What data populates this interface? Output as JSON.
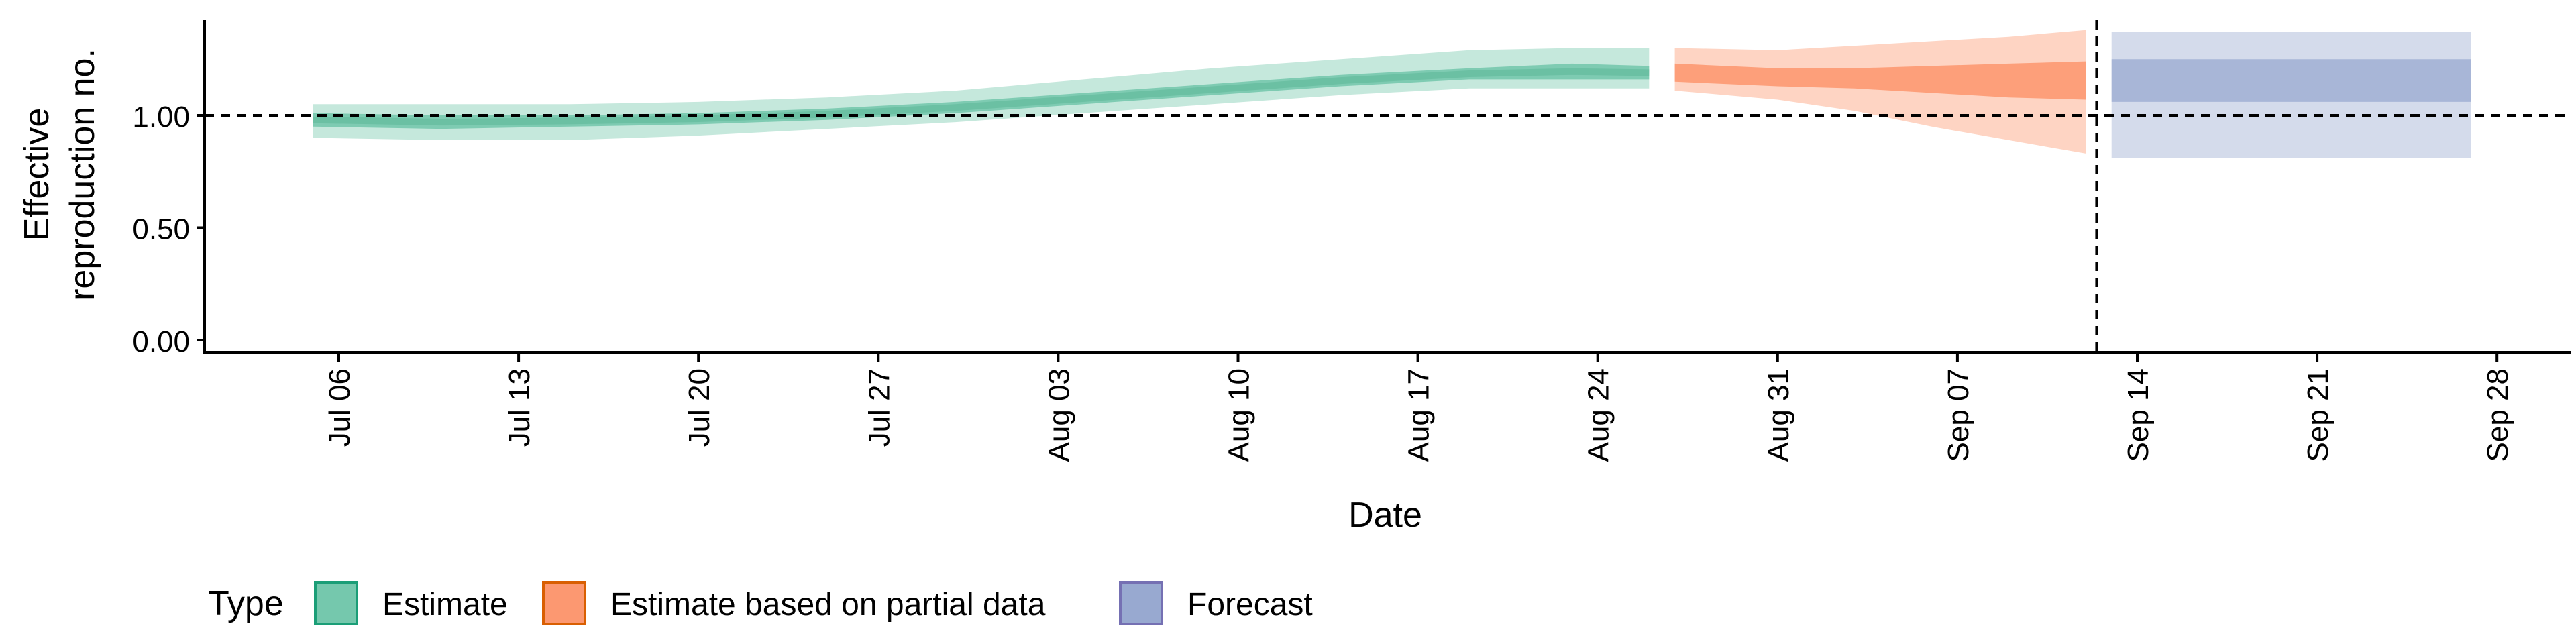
{
  "chart_data": {
    "type": "area",
    "title": "",
    "xlabel": "Date",
    "ylabel_lines": [
      "Effective",
      "reproduction no."
    ],
    "ylim": [
      0,
      1.45
    ],
    "xlim": [
      "2020-07-03",
      "2020-09-30"
    ],
    "reference_line_y": 1.0,
    "vline_date": "2020-09-12",
    "grid": false,
    "legend_position": "bottom-left",
    "legend_title": "Type",
    "x_ticks": [
      {
        "date": "2020-07-06",
        "label": "Jul 06"
      },
      {
        "date": "2020-07-13",
        "label": "Jul 13"
      },
      {
        "date": "2020-07-20",
        "label": "Jul 20"
      },
      {
        "date": "2020-07-27",
        "label": "Jul 27"
      },
      {
        "date": "2020-08-03",
        "label": "Aug 03"
      },
      {
        "date": "2020-08-10",
        "label": "Aug 10"
      },
      {
        "date": "2020-08-17",
        "label": "Aug 17"
      },
      {
        "date": "2020-08-24",
        "label": "Aug 24"
      },
      {
        "date": "2020-08-31",
        "label": "Aug 31"
      },
      {
        "date": "2020-09-07",
        "label": "Sep 07"
      },
      {
        "date": "2020-09-14",
        "label": "Sep 14"
      },
      {
        "date": "2020-09-21",
        "label": "Sep 21"
      },
      {
        "date": "2020-09-28",
        "label": "Sep 28"
      }
    ],
    "y_ticks": [
      {
        "value": 0.0,
        "label": "0.00"
      },
      {
        "value": 0.5,
        "label": "0.50"
      },
      {
        "value": 1.0,
        "label": "1.00"
      }
    ],
    "series": [
      {
        "name": "Estimate",
        "color": "#1b9e77",
        "fill": "#66c2a4",
        "points": [
          {
            "date": "2020-07-05",
            "lo90": 0.9,
            "lo50": 0.95,
            "hi50": 1.01,
            "hi90": 1.05
          },
          {
            "date": "2020-07-10",
            "lo90": 0.89,
            "lo50": 0.94,
            "hi50": 1.0,
            "hi90": 1.05
          },
          {
            "date": "2020-07-15",
            "lo90": 0.89,
            "lo50": 0.95,
            "hi50": 1.0,
            "hi90": 1.05
          },
          {
            "date": "2020-07-20",
            "lo90": 0.91,
            "lo50": 0.96,
            "hi50": 1.01,
            "hi90": 1.06
          },
          {
            "date": "2020-07-25",
            "lo90": 0.94,
            "lo50": 0.98,
            "hi50": 1.03,
            "hi90": 1.08
          },
          {
            "date": "2020-07-30",
            "lo90": 0.97,
            "lo50": 1.01,
            "hi50": 1.06,
            "hi90": 1.11
          },
          {
            "date": "2020-08-04",
            "lo90": 1.01,
            "lo50": 1.05,
            "hi50": 1.1,
            "hi90": 1.16
          },
          {
            "date": "2020-08-09",
            "lo90": 1.05,
            "lo50": 1.09,
            "hi50": 1.14,
            "hi90": 1.21
          },
          {
            "date": "2020-08-14",
            "lo90": 1.09,
            "lo50": 1.13,
            "hi50": 1.18,
            "hi90": 1.25
          },
          {
            "date": "2020-08-19",
            "lo90": 1.12,
            "lo50": 1.16,
            "hi50": 1.21,
            "hi90": 1.29
          },
          {
            "date": "2020-08-23",
            "lo90": 1.12,
            "lo50": 1.16,
            "hi50": 1.23,
            "hi90": 1.3
          },
          {
            "date": "2020-08-26",
            "lo90": 1.12,
            "lo50": 1.16,
            "hi50": 1.22,
            "hi90": 1.3
          }
        ]
      },
      {
        "name": "Estimate based on partial data",
        "color": "#d95f02",
        "fill": "#fc8d62",
        "points": [
          {
            "date": "2020-08-27",
            "lo90": 1.11,
            "lo50": 1.15,
            "hi50": 1.23,
            "hi90": 1.3
          },
          {
            "date": "2020-08-31",
            "lo90": 1.07,
            "lo50": 1.13,
            "hi50": 1.21,
            "hi90": 1.29
          },
          {
            "date": "2020-09-03",
            "lo90": 1.02,
            "lo50": 1.12,
            "hi50": 1.21,
            "hi90": 1.31
          },
          {
            "date": "2020-09-06",
            "lo90": 0.95,
            "lo50": 1.1,
            "hi50": 1.22,
            "hi90": 1.33
          },
          {
            "date": "2020-09-09",
            "lo90": 0.89,
            "lo50": 1.08,
            "hi50": 1.23,
            "hi90": 1.35
          },
          {
            "date": "2020-09-12",
            "lo90": 0.83,
            "lo50": 1.07,
            "hi50": 1.24,
            "hi90": 1.38
          }
        ]
      },
      {
        "name": "Forecast",
        "color": "#7570b3",
        "fill": "#8da0cb",
        "points": [
          {
            "date": "2020-09-13",
            "lo90": 0.81,
            "lo50": 1.06,
            "hi50": 1.25,
            "hi90": 1.37
          },
          {
            "date": "2020-09-27",
            "lo90": 0.81,
            "lo50": 1.06,
            "hi50": 1.25,
            "hi90": 1.37
          }
        ]
      }
    ]
  }
}
